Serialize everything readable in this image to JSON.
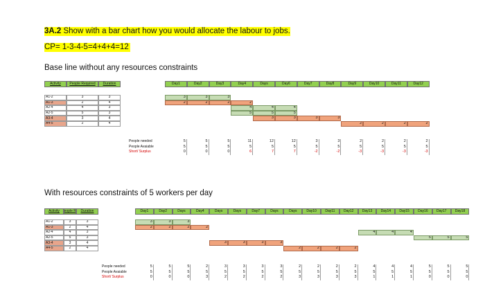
{
  "question": {
    "num": "3A.2",
    "text": " Show with a bar chart how you would allocate the labour to jobs."
  },
  "critical_path": "CP= 1-3-4-5=4+4+4=12",
  "section1": {
    "caption": "Base line without any resources constraints",
    "headers": [
      "Activity",
      "People Required",
      "Duration"
    ],
    "days": [
      "Day1",
      "Day2",
      "Day3",
      "Day4",
      "Days",
      "Day6",
      "Day7",
      "Day8",
      "Day9",
      "Day10",
      "Day11",
      "Day12"
    ],
    "activities": [
      {
        "id": "A1-2",
        "people": "3",
        "duration": "3",
        "critical": false
      },
      {
        "id": "A1-3",
        "people": "2",
        "duration": "4",
        "critical": true
      },
      {
        "id": "A2-4",
        "people": "4",
        "duration": "3",
        "critical": false
      },
      {
        "id": "A2-5",
        "people": "5",
        "duration": "3",
        "critical": false
      },
      {
        "id": "A3-4",
        "people": "3",
        "duration": "4",
        "critical": true
      },
      {
        "id": "A4-5",
        "people": "2",
        "duration": "4",
        "critical": true
      }
    ],
    "rows": [
      {
        "label": "People needed",
        "values": [
          "5",
          "5",
          "5",
          "11",
          "12",
          "12",
          "3",
          "3",
          "2",
          "2",
          "2",
          "2"
        ]
      },
      {
        "label": "People Avaiable",
        "values": [
          "5",
          "5",
          "5",
          "5",
          "5",
          "5",
          "5",
          "5",
          "5",
          "5",
          "5",
          "5"
        ]
      },
      {
        "label": "Short/ Surplus",
        "values": [
          "0",
          "0",
          "0",
          "6",
          "7",
          "7",
          "-2",
          "-2",
          "-3",
          "-3",
          "-3",
          "-3"
        ]
      }
    ]
  },
  "section2": {
    "caption": "With resources constraints of 5 workers per day",
    "headers": [
      "Activity",
      "People Re",
      "Duration"
    ],
    "days": [
      "Day1",
      "Day2",
      "Days",
      "Day4",
      "Days",
      "Days",
      "Day7",
      "Days",
      "Days",
      "Day10",
      "Day11",
      "Day12",
      "Day13",
      "Day14",
      "Day15",
      "Day16",
      "Day17",
      "Day18"
    ],
    "activities": [
      {
        "id": "A1-2",
        "people": "3",
        "duration": "3",
        "critical": false
      },
      {
        "id": "A1-3",
        "people": "2",
        "duration": "4",
        "critical": true
      },
      {
        "id": "A2-4",
        "people": "4",
        "duration": "3",
        "critical": false
      },
      {
        "id": "A2-5",
        "people": "5",
        "duration": "3",
        "critical": false
      },
      {
        "id": "A3-4",
        "people": "3",
        "duration": "4",
        "critical": true
      },
      {
        "id": "A4-5",
        "people": "2",
        "duration": "4",
        "critical": true
      }
    ],
    "rows": [
      {
        "label": "People needed",
        "values": [
          "5",
          "5",
          "5",
          "2",
          "3",
          "3",
          "3",
          "3",
          "2",
          "2",
          "2",
          "2",
          "4",
          "4",
          "4",
          "5",
          "5",
          "5"
        ]
      },
      {
        "label": "People Avaiable",
        "values": [
          "5",
          "5",
          "5",
          "5",
          "5",
          "5",
          "5",
          "5",
          "5",
          "5",
          "5",
          "5",
          "5",
          "5",
          "5",
          "5",
          "5",
          "5"
        ]
      },
      {
        "label": "Short/ Surplus",
        "values": [
          "0",
          "0",
          "0",
          "3",
          "2",
          "2",
          "2",
          "2",
          "3",
          "3",
          "3",
          "3",
          "1",
          "1",
          "1",
          "0",
          "0",
          "0"
        ]
      }
    ]
  },
  "colors": {
    "header_green": "#92d050",
    "critical_fill": "#f0a37c",
    "noncritical_fill": "#c6dcb4",
    "highlight": "#ffff00",
    "negative_text": "#d40000"
  }
}
